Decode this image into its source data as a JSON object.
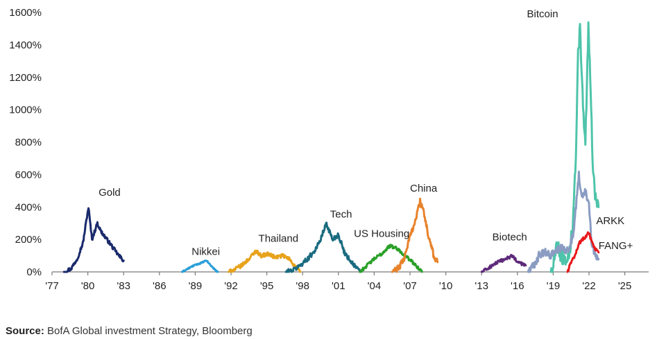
{
  "chart_data": {
    "type": "line",
    "title": "",
    "xlabel": "",
    "ylabel": "",
    "xlim": [
      1977,
      2027
    ],
    "ylim": [
      0,
      1600
    ],
    "y_ticks": [
      0,
      200,
      400,
      600,
      800,
      1000,
      1200,
      1400,
      1600
    ],
    "y_tick_labels": [
      "0%",
      "200%",
      "400%",
      "600%",
      "800%",
      "1000%",
      "1200%",
      "1400%",
      "1600%"
    ],
    "x_ticks": [
      1977,
      1980,
      1983,
      1986,
      1989,
      1992,
      1995,
      1998,
      2001,
      2004,
      2007,
      2010,
      2013,
      2016,
      2019,
      2022,
      2025
    ],
    "x_tick_labels": [
      "'77",
      "'80",
      "'83",
      "'86",
      "'89",
      "'92",
      "'95",
      "'98",
      "'01",
      "'04",
      "'07",
      "'10",
      "'13",
      "'16",
      "'19",
      "'22",
      "'25"
    ],
    "series": [
      {
        "name": "Gold",
        "color": "#1a2a6c",
        "noise": 12,
        "label_at": [
          1980.9,
          470
        ],
        "points": [
          [
            1978.0,
            0
          ],
          [
            1978.6,
            20
          ],
          [
            1979.1,
            80
          ],
          [
            1979.6,
            180
          ],
          [
            1980.05,
            400
          ],
          [
            1980.35,
            200
          ],
          [
            1980.8,
            300
          ],
          [
            1981.1,
            250
          ],
          [
            1981.6,
            200
          ],
          [
            1982.1,
            150
          ],
          [
            1982.6,
            100
          ],
          [
            1983.0,
            70
          ]
        ]
      },
      {
        "name": "Nikkei",
        "color": "#2a9fd8",
        "noise": 4,
        "label_at": [
          1988.7,
          105
        ],
        "points": [
          [
            1987.9,
            0
          ],
          [
            1988.4,
            20
          ],
          [
            1988.9,
            40
          ],
          [
            1989.5,
            55
          ],
          [
            1989.95,
            70
          ],
          [
            1990.3,
            40
          ],
          [
            1990.7,
            10
          ],
          [
            1990.9,
            0
          ]
        ]
      },
      {
        "name": "Thailand",
        "color": "#e8a31c",
        "noise": 12,
        "label_at": [
          1994.3,
          185
        ],
        "points": [
          [
            1991.8,
            0
          ],
          [
            1992.3,
            15
          ],
          [
            1992.9,
            40
          ],
          [
            1993.5,
            80
          ],
          [
            1994.1,
            130
          ],
          [
            1994.5,
            100
          ],
          [
            1995.1,
            110
          ],
          [
            1995.7,
            90
          ],
          [
            1996.3,
            100
          ],
          [
            1996.9,
            80
          ],
          [
            1997.4,
            30
          ],
          [
            1997.8,
            0
          ]
        ]
      },
      {
        "name": "Tech",
        "color": "#1a6b80",
        "noise": 15,
        "label_at": [
          2000.3,
          335
        ],
        "points": [
          [
            1996.6,
            0
          ],
          [
            1997.2,
            10
          ],
          [
            1997.8,
            40
          ],
          [
            1998.4,
            80
          ],
          [
            1998.9,
            120
          ],
          [
            1999.4,
            180
          ],
          [
            2000.0,
            300
          ],
          [
            2000.5,
            200
          ],
          [
            2001.0,
            230
          ],
          [
            2001.5,
            120
          ],
          [
            2002.1,
            60
          ],
          [
            2002.8,
            0
          ]
        ]
      },
      {
        "name": "US Housing",
        "color": "#2aa028",
        "noise": 10,
        "label_at": [
          2002.3,
          215
        ],
        "points": [
          [
            2002.8,
            0
          ],
          [
            2003.4,
            40
          ],
          [
            2004.0,
            80
          ],
          [
            2004.6,
            110
          ],
          [
            2005.3,
            160
          ],
          [
            2005.8,
            150
          ],
          [
            2006.3,
            120
          ],
          [
            2006.9,
            80
          ],
          [
            2007.5,
            40
          ],
          [
            2008.0,
            0
          ]
        ]
      },
      {
        "name": "China",
        "color": "#e8822a",
        "noise": 20,
        "label_at": [
          2007.0,
          495
        ],
        "points": [
          [
            2005.5,
            0
          ],
          [
            2006.0,
            20
          ],
          [
            2006.5,
            80
          ],
          [
            2007.0,
            220
          ],
          [
            2007.5,
            330
          ],
          [
            2007.85,
            440
          ],
          [
            2008.2,
            350
          ],
          [
            2008.6,
            200
          ],
          [
            2009.0,
            100
          ],
          [
            2009.3,
            60
          ]
        ]
      },
      {
        "name": "Biotech",
        "color": "#5e2a7a",
        "noise": 10,
        "label_at": [
          2013.9,
          195
        ],
        "points": [
          [
            2013.0,
            0
          ],
          [
            2013.5,
            20
          ],
          [
            2014.1,
            50
          ],
          [
            2014.7,
            70
          ],
          [
            2015.3,
            90
          ],
          [
            2015.6,
            100
          ],
          [
            2016.0,
            60
          ],
          [
            2016.4,
            50
          ],
          [
            2016.7,
            40
          ]
        ]
      },
      {
        "name": "Bitcoin",
        "color": "#4ec4aa",
        "noise": 45,
        "label_at": [
          2016.8,
          1570
        ],
        "points": [
          [
            2018.8,
            0
          ],
          [
            2019.1,
            80
          ],
          [
            2019.4,
            200
          ],
          [
            2019.6,
            100
          ],
          [
            2020.0,
            80
          ],
          [
            2020.3,
            100
          ],
          [
            2020.6,
            250
          ],
          [
            2020.9,
            700
          ],
          [
            2021.05,
            1300
          ],
          [
            2021.25,
            1500
          ],
          [
            2021.5,
            1000
          ],
          [
            2021.7,
            800
          ],
          [
            2021.95,
            1500
          ],
          [
            2022.1,
            1200
          ],
          [
            2022.3,
            700
          ],
          [
            2022.55,
            450
          ],
          [
            2022.8,
            400
          ]
        ]
      },
      {
        "name": "ARKK",
        "color": "#8a9cc2",
        "noise": 25,
        "label_at": [
          2022.6,
          295
        ],
        "points": [
          [
            2016.9,
            0
          ],
          [
            2017.4,
            40
          ],
          [
            2017.8,
            100
          ],
          [
            2018.3,
            120
          ],
          [
            2018.8,
            100
          ],
          [
            2019.3,
            130
          ],
          [
            2019.8,
            150
          ],
          [
            2020.3,
            120
          ],
          [
            2020.7,
            250
          ],
          [
            2021.0,
            480
          ],
          [
            2021.15,
            600
          ],
          [
            2021.4,
            450
          ],
          [
            2021.75,
            500
          ],
          [
            2022.0,
            400
          ],
          [
            2022.2,
            200
          ],
          [
            2022.5,
            100
          ],
          [
            2022.8,
            80
          ]
        ]
      },
      {
        "name": "FANG+",
        "color": "#e8181a",
        "noise": 10,
        "label_at": [
          2022.8,
          140
        ],
        "points": [
          [
            2020.2,
            0
          ],
          [
            2020.45,
            50
          ],
          [
            2020.8,
            100
          ],
          [
            2021.2,
            180
          ],
          [
            2021.6,
            210
          ],
          [
            2021.95,
            240
          ],
          [
            2022.2,
            200
          ],
          [
            2022.5,
            140
          ],
          [
            2022.8,
            120
          ]
        ]
      }
    ]
  },
  "footer": {
    "source_label": "Source:",
    "source_text": " BofA Global investment Strategy, Bloomberg"
  }
}
